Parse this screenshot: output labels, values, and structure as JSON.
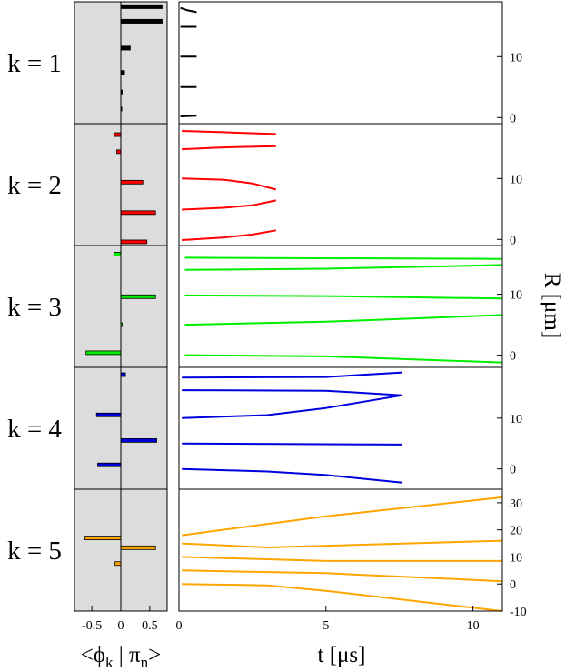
{
  "colors": {
    "k1": "#000000",
    "k2": "#ff0000",
    "k3": "#00ee00",
    "k4": "#0000dd",
    "k5": "#ffa500",
    "left_background": "#dcdcdc"
  },
  "chart_data": [
    {
      "type": "bar",
      "orientation": "horizontal",
      "xlabel_parts": [
        "<ϕ",
        "k",
        " | π",
        "n",
        ">"
      ],
      "xlim": [
        -0.8,
        0.8
      ],
      "xticks": [
        -0.5,
        0,
        0.5
      ],
      "xtick_labels": [
        "-0.5",
        "0",
        "0.5"
      ],
      "panels": [
        {
          "label": "k = 1",
          "color_key": "k1",
          "thick": true,
          "bars": [
            {
              "y": 0.04,
              "v": 0.72
            },
            {
              "y": 0.16,
              "v": 0.72
            },
            {
              "y": 0.38,
              "v": 0.17
            },
            {
              "y": 0.58,
              "v": 0.07
            },
            {
              "y": 0.74,
              "v": 0.03
            },
            {
              "y": 0.88,
              "v": 0.02
            }
          ]
        },
        {
          "label": "k = 2",
          "color_key": "k2",
          "thick": false,
          "bars": [
            {
              "y": 0.09,
              "v": -0.12
            },
            {
              "y": 0.23,
              "v": -0.07
            },
            {
              "y": 0.48,
              "v": 0.38
            },
            {
              "y": 0.73,
              "v": 0.6
            },
            {
              "y": 0.97,
              "v": 0.45
            }
          ]
        },
        {
          "label": "k = 3",
          "color_key": "k3",
          "thick": false,
          "bars": [
            {
              "y": 0.07,
              "v": -0.12
            },
            {
              "y": 0.42,
              "v": 0.6
            },
            {
              "y": 0.65,
              "v": 0.02
            },
            {
              "y": 0.88,
              "v": -0.6
            }
          ]
        },
        {
          "label": "k = 4",
          "color_key": "k4",
          "thick": false,
          "bars": [
            {
              "y": 0.06,
              "v": 0.08
            },
            {
              "y": 0.39,
              "v": -0.42
            },
            {
              "y": 0.6,
              "v": 0.62
            },
            {
              "y": 0.8,
              "v": -0.4
            }
          ]
        },
        {
          "label": "k = 5",
          "color_key": "k5",
          "thick": false,
          "bars": [
            {
              "y": 0.4,
              "v": -0.62
            },
            {
              "y": 0.48,
              "v": 0.6
            },
            {
              "y": 0.61,
              "v": -0.1
            }
          ]
        }
      ]
    },
    {
      "type": "line",
      "xlabel": "t [μs]",
      "ylabel": "R [μm]",
      "xlim": [
        0,
        11
      ],
      "xticks": [
        0,
        5,
        10
      ],
      "xtick_labels": [
        "0",
        "5",
        "10"
      ],
      "panels": [
        {
          "color_key": "k1",
          "ylim": [
            -1,
            19
          ],
          "yticks": [
            0,
            10
          ],
          "ytick_labels": [
            "0",
            "10"
          ],
          "series": [
            {
              "x": [
                0.05,
                0.3,
                0.6
              ],
              "y": [
                18,
                17.6,
                17.3
              ]
            },
            {
              "x": [
                0.05,
                0.6
              ],
              "y": [
                14.9,
                14.9
              ]
            },
            {
              "x": [
                0.05,
                0.6
              ],
              "y": [
                10,
                10
              ]
            },
            {
              "x": [
                0.05,
                0.6
              ],
              "y": [
                5,
                5
              ]
            },
            {
              "x": [
                0.05,
                0.6
              ],
              "y": [
                0.2,
                0.3
              ]
            }
          ]
        },
        {
          "color_key": "k2",
          "ylim": [
            -1,
            19
          ],
          "yticks": [
            0,
            10
          ],
          "ytick_labels": [
            "0",
            "10"
          ],
          "series": [
            {
              "x": [
                0.1,
                1.5,
                3.3
              ],
              "y": [
                17.8,
                17.6,
                17.3
              ]
            },
            {
              "x": [
                0.1,
                1.5,
                3.3
              ],
              "y": [
                14.8,
                15.1,
                15.3
              ]
            },
            {
              "x": [
                0.1,
                1.5,
                2.5,
                3.3
              ],
              "y": [
                10,
                9.8,
                9.2,
                8.2
              ]
            },
            {
              "x": [
                0.1,
                1.5,
                2.5,
                3.3
              ],
              "y": [
                4.9,
                5.2,
                5.6,
                6.4
              ]
            },
            {
              "x": [
                0.1,
                1.5,
                2.5,
                3.3
              ],
              "y": [
                -0.1,
                0.3,
                0.8,
                1.5
              ]
            }
          ]
        },
        {
          "color_key": "k3",
          "ylim": [
            -2,
            18
          ],
          "yticks": [
            0,
            10
          ],
          "ytick_labels": [
            "0",
            "10"
          ],
          "series": [
            {
              "x": [
                0.2,
                11
              ],
              "y": [
                16,
                15.8
              ]
            },
            {
              "x": [
                0.2,
                5,
                11
              ],
              "y": [
                14,
                14.2,
                14.8
              ]
            },
            {
              "x": [
                0.2,
                5,
                11
              ],
              "y": [
                9.8,
                9.7,
                9.3
              ]
            },
            {
              "x": [
                0.2,
                5,
                11
              ],
              "y": [
                5.0,
                5.5,
                6.6
              ]
            },
            {
              "x": [
                0.2,
                5,
                11
              ],
              "y": [
                0,
                -0.2,
                -1.2
              ]
            }
          ]
        },
        {
          "color_key": "k4",
          "ylim": [
            -4,
            20
          ],
          "yticks": [
            0,
            10
          ],
          "ytick_labels": [
            "0",
            "10"
          ],
          "series": [
            {
              "x": [
                0.1,
                5,
                7.6
              ],
              "y": [
                18,
                18.1,
                19
              ]
            },
            {
              "x": [
                0.1,
                5,
                7.6
              ],
              "y": [
                15.5,
                15.4,
                14.5
              ]
            },
            {
              "x": [
                0.1,
                3,
                5,
                7.6
              ],
              "y": [
                10,
                10.6,
                12,
                14.5
              ]
            },
            {
              "x": [
                0.1,
                7.6
              ],
              "y": [
                5,
                4.8
              ]
            },
            {
              "x": [
                0.1,
                3,
                5,
                7.6
              ],
              "y": [
                0,
                -0.5,
                -1.2,
                -2.7
              ]
            }
          ]
        },
        {
          "color_key": "k5",
          "ylim": [
            -10,
            35
          ],
          "yticks": [
            -10,
            0,
            10,
            20,
            30
          ],
          "ytick_labels": [
            "-10",
            "0",
            "10",
            "20",
            "30"
          ],
          "series": [
            {
              "x": [
                0.1,
                5,
                11
              ],
              "y": [
                18,
                25,
                32
              ]
            },
            {
              "x": [
                0.1,
                3,
                11
              ],
              "y": [
                15,
                13.5,
                16
              ]
            },
            {
              "x": [
                0.1,
                5,
                11
              ],
              "y": [
                10,
                8.5,
                8.5
              ]
            },
            {
              "x": [
                0.1,
                5,
                11
              ],
              "y": [
                5,
                4,
                1
              ]
            },
            {
              "x": [
                0.1,
                3,
                5,
                11
              ],
              "y": [
                0,
                -0.5,
                -2.5,
                -10
              ]
            }
          ]
        }
      ]
    }
  ]
}
